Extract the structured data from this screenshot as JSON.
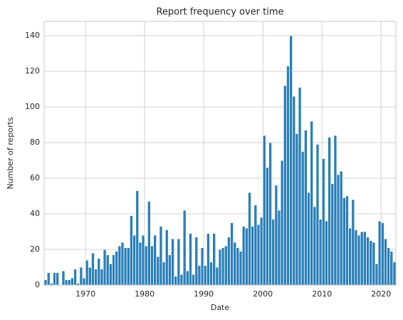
{
  "chart_data": {
    "type": "histogram",
    "title": "Report frequency over time",
    "x_label": "Date",
    "y_label": "Number of reports",
    "bins": [
      1963,
      1963.5,
      1964,
      1964.5,
      1965,
      1965.5,
      1966,
      1966.5,
      1967,
      1967.5,
      1968,
      1968.5,
      1969,
      1969.5,
      1970,
      1970.5,
      1971,
      1971.5,
      1972,
      1972.5,
      1973,
      1973.5,
      1974,
      1974.5,
      1975,
      1975.5,
      1976,
      1976.5,
      1977,
      1977.5,
      1978,
      1978.5,
      1979,
      1979.5,
      1980,
      1980.5,
      1981,
      1981.5,
      1982,
      1982.5,
      1983,
      1983.5,
      1984,
      1984.5,
      1985,
      1985.5,
      1986,
      1986.5,
      1987,
      1987.5,
      1988,
      1988.5,
      1989,
      1989.5,
      1990,
      1990.5,
      1991,
      1991.5,
      1992,
      1992.5,
      1993,
      1993.5,
      1994,
      1994.5,
      1995,
      1995.5,
      1996,
      1996.5,
      1997,
      1997.5,
      1998,
      1998.5,
      1999,
      1999.5,
      2000,
      2000.5,
      2001,
      2001.5,
      2002,
      2002.5,
      2003,
      2003.5,
      2004,
      2004.5,
      2005,
      2005.5,
      2006,
      2006.5,
      2007,
      2007.5,
      2008,
      2008.5,
      2009,
      2009.5,
      2010,
      2010.5,
      2011,
      2011.5,
      2012,
      2012.5,
      2013,
      2013.5,
      2014,
      2014.5,
      2015,
      2015.5,
      2016,
      2016.5,
      2017,
      2017.5,
      2018,
      2018.5,
      2019,
      2019.5,
      2020,
      2020.5,
      2021,
      2021.5,
      2022,
      2022.5
    ],
    "counts": [
      3,
      7,
      1,
      7,
      7,
      0,
      8,
      3,
      3,
      4,
      9,
      1,
      10,
      4,
      14,
      10,
      18,
      9,
      15,
      9,
      20,
      17,
      12,
      17,
      19,
      22,
      24,
      21,
      21,
      39,
      28,
      53,
      24,
      28,
      22,
      47,
      22,
      28,
      16,
      33,
      13,
      31,
      17,
      26,
      5,
      26,
      6,
      42,
      8,
      29,
      6,
      27,
      11,
      21,
      11,
      29,
      13,
      29,
      10,
      20,
      21,
      22,
      27,
      35,
      24,
      21,
      19,
      33,
      32,
      52,
      33,
      45,
      34,
      38,
      84,
      66,
      80,
      37,
      56,
      42,
      70,
      112,
      123,
      140,
      106,
      85,
      111,
      75,
      87,
      52,
      92,
      44,
      79,
      37,
      71,
      36,
      83,
      57,
      84,
      62,
      64,
      49,
      50,
      32,
      48,
      31,
      28,
      30,
      30,
      27,
      25,
      24,
      12,
      36,
      35,
      26,
      21,
      19,
      13
    ],
    "color": "#2a7fb8",
    "xlim": [
      1963,
      2022.5
    ],
    "xticks": [
      1970,
      1980,
      1990,
      2000,
      2010,
      2020
    ],
    "ylim": [
      0,
      148
    ],
    "yticks": [
      0,
      20,
      40,
      60,
      80,
      100,
      120,
      140
    ],
    "grid": true
  }
}
